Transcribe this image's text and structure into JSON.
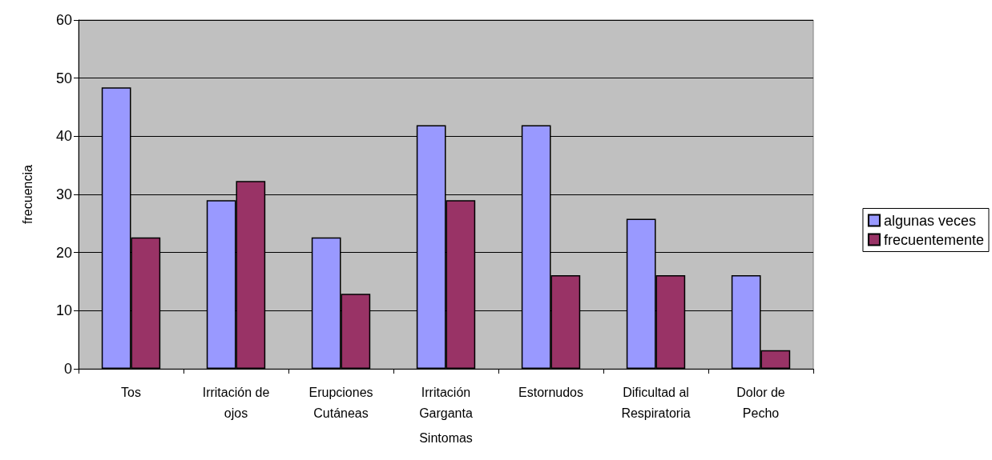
{
  "chart_data": {
    "type": "bar",
    "xlabel": "Sintomas",
    "ylabel": "frecuencia",
    "categories": [
      "Tos",
      "Irritación de\nojos",
      "Erupciones\nCutáneas",
      "Irritación\nGarganta",
      "Estornudos",
      "Dificultad al\nRespiratoria",
      "Dolor de\nPecho"
    ],
    "series": [
      {
        "name": "algunas veces",
        "color": "#9999ff",
        "values": [
          48.4,
          29.0,
          22.6,
          41.9,
          41.9,
          25.8,
          16.1
        ]
      },
      {
        "name": "frecuentemente",
        "color": "#993366",
        "values": [
          22.6,
          32.3,
          12.9,
          29.0,
          16.1,
          16.1,
          3.2
        ]
      }
    ],
    "ylim": [
      0,
      60
    ],
    "yticks": [
      0,
      10,
      20,
      30,
      40,
      50,
      60
    ],
    "grid": "y",
    "legend": "right"
  }
}
